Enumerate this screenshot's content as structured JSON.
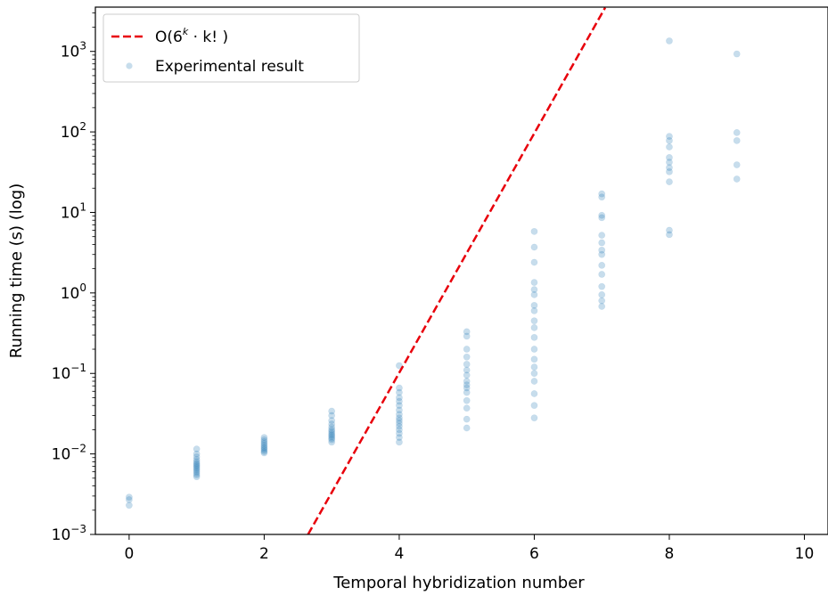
{
  "chart_data": {
    "type": "scatter",
    "xlabel": "Temporal hybridization number",
    "ylabel": "Running time (s) (log)",
    "xlim": [
      -0.5,
      10.35
    ],
    "ylim_log10": [
      -3,
      3.55
    ],
    "y_scale": "log",
    "x_ticks": [
      0,
      2,
      4,
      6,
      8,
      10
    ],
    "y_ticks": [
      {
        "exp": -3,
        "base": "10",
        "sup": "−3"
      },
      {
        "exp": -2,
        "base": "10",
        "sup": "−2"
      },
      {
        "exp": -1,
        "base": "10",
        "sup": "−1"
      },
      {
        "exp": 0,
        "base": "10",
        "sup": "0"
      },
      {
        "exp": 1,
        "base": "10",
        "sup": "1"
      },
      {
        "exp": 2,
        "base": "10",
        "sup": "2"
      },
      {
        "exp": 3,
        "base": "10",
        "sup": "3"
      }
    ],
    "grid": false,
    "legend_placement": "top-left",
    "legend": {
      "line_label_pre": "O(6",
      "line_label_sup": "k",
      "line_label_post": " · k! )",
      "scatter_label": "Experimental result"
    },
    "series": [
      {
        "name": "O(6^k · k! )",
        "kind": "line",
        "style": "dashed",
        "color": "#e8000b",
        "points": [
          [
            2.65,
            0.001
          ],
          [
            7.05,
            3500
          ]
        ]
      },
      {
        "name": "Experimental result",
        "kind": "scatter",
        "color": "#1f77b4",
        "points": [
          [
            0,
            0.0029
          ],
          [
            0,
            0.0027
          ],
          [
            0,
            0.0023
          ],
          [
            1,
            0.0115
          ],
          [
            1,
            0.01
          ],
          [
            1,
            0.0092
          ],
          [
            1,
            0.0085
          ],
          [
            1,
            0.008
          ],
          [
            1,
            0.0076
          ],
          [
            1,
            0.0073
          ],
          [
            1,
            0.007
          ],
          [
            1,
            0.0067
          ],
          [
            1,
            0.0064
          ],
          [
            1,
            0.0061
          ],
          [
            1,
            0.0058
          ],
          [
            1,
            0.0055
          ],
          [
            1,
            0.0052
          ],
          [
            2,
            0.016
          ],
          [
            2,
            0.015
          ],
          [
            2,
            0.0142
          ],
          [
            2,
            0.0135
          ],
          [
            2,
            0.0128
          ],
          [
            2,
            0.0122
          ],
          [
            2,
            0.0117
          ],
          [
            2,
            0.0112
          ],
          [
            2,
            0.0107
          ],
          [
            2,
            0.0103
          ],
          [
            3,
            0.034
          ],
          [
            3,
            0.03
          ],
          [
            3,
            0.026
          ],
          [
            3,
            0.0235
          ],
          [
            3,
            0.0215
          ],
          [
            3,
            0.02
          ],
          [
            3,
            0.019
          ],
          [
            3,
            0.018
          ],
          [
            3,
            0.0172
          ],
          [
            3,
            0.0165
          ],
          [
            3,
            0.0157
          ],
          [
            3,
            0.015
          ],
          [
            3,
            0.014
          ],
          [
            4,
            0.125
          ],
          [
            4,
            0.066
          ],
          [
            4,
            0.058
          ],
          [
            4,
            0.05
          ],
          [
            4,
            0.045
          ],
          [
            4,
            0.04
          ],
          [
            4,
            0.035
          ],
          [
            4,
            0.031
          ],
          [
            4,
            0.028
          ],
          [
            4,
            0.026
          ],
          [
            4,
            0.024
          ],
          [
            4,
            0.022
          ],
          [
            4,
            0.02
          ],
          [
            4,
            0.018
          ],
          [
            4,
            0.016
          ],
          [
            4,
            0.014
          ],
          [
            5,
            0.33
          ],
          [
            5,
            0.29
          ],
          [
            5,
            0.2
          ],
          [
            5,
            0.16
          ],
          [
            5,
            0.13
          ],
          [
            5,
            0.11
          ],
          [
            5,
            0.095
          ],
          [
            5,
            0.08
          ],
          [
            5,
            0.072
          ],
          [
            5,
            0.066
          ],
          [
            5,
            0.058
          ],
          [
            5,
            0.046
          ],
          [
            5,
            0.037
          ],
          [
            5,
            0.027
          ],
          [
            5,
            0.021
          ],
          [
            6,
            5.8
          ],
          [
            6,
            3.7
          ],
          [
            6,
            2.4
          ],
          [
            6,
            1.35
          ],
          [
            6,
            1.1
          ],
          [
            6,
            0.95
          ],
          [
            6,
            0.7
          ],
          [
            6,
            0.6
          ],
          [
            6,
            0.45
          ],
          [
            6,
            0.37
          ],
          [
            6,
            0.28
          ],
          [
            6,
            0.2
          ],
          [
            6,
            0.15
          ],
          [
            6,
            0.12
          ],
          [
            6,
            0.1
          ],
          [
            6,
            0.08
          ],
          [
            6,
            0.056
          ],
          [
            6,
            0.04
          ],
          [
            6,
            0.028
          ],
          [
            7,
            17
          ],
          [
            7,
            15.5
          ],
          [
            7,
            9.2
          ],
          [
            7,
            8.6
          ],
          [
            7,
            5.2
          ],
          [
            7,
            4.2
          ],
          [
            7,
            3.4
          ],
          [
            7,
            3.0
          ],
          [
            7,
            2.2
          ],
          [
            7,
            1.7
          ],
          [
            7,
            1.2
          ],
          [
            7,
            0.95
          ],
          [
            7,
            0.8
          ],
          [
            7,
            0.68
          ],
          [
            8,
            1350
          ],
          [
            8,
            88
          ],
          [
            8,
            78
          ],
          [
            8,
            65
          ],
          [
            8,
            48
          ],
          [
            8,
            42
          ],
          [
            8,
            36
          ],
          [
            8,
            32
          ],
          [
            8,
            24
          ],
          [
            8,
            6.0
          ],
          [
            8,
            5.3
          ],
          [
            9,
            930
          ],
          [
            9,
            98
          ],
          [
            9,
            78
          ],
          [
            9,
            39
          ],
          [
            9,
            26
          ]
        ]
      }
    ]
  }
}
